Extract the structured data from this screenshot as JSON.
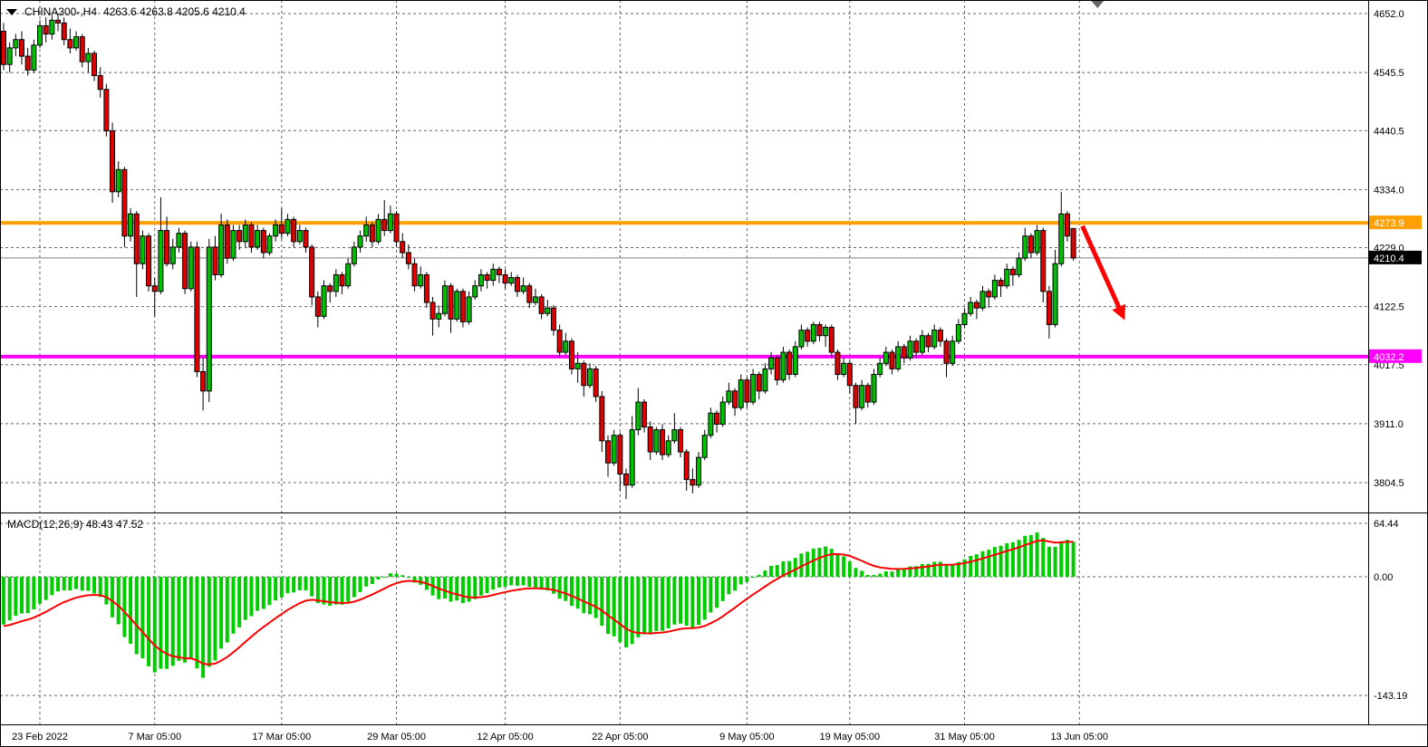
{
  "header": {
    "symbol_timeframe": "CHINA300-,H4",
    "ohlc": "4263.6 4263.8 4205.6 4210.4"
  },
  "macd_header": "MACD(12,26,9) 48.43 47.52",
  "chart_data": {
    "type": "candlestick",
    "title": "CHINA300- H4 candlestick chart with MACD(12,26,9) indicator",
    "price_pane": {
      "y_ticks": [
        4652.0,
        4545.5,
        4440.5,
        4334.0,
        4229.0,
        4122.5,
        4017.5,
        3911.0,
        3804.5
      ],
      "y_range_top": 4676.5,
      "y_range_bottom": 3750.5,
      "grid": true,
      "hlines": [
        {
          "name": "resistance-line",
          "value": 4273.9,
          "label": "4273.9",
          "color": "#FFA000",
          "width": 4
        },
        {
          "name": "support-line",
          "value": 4032.2,
          "label": "4032.2",
          "color": "#FF00FF",
          "width": 4
        }
      ],
      "current_price": {
        "value": 4210.4,
        "label": "4210.4",
        "line_color": "#808080",
        "label_bg": "#000000",
        "label_fg": "#FFFFFF"
      },
      "arrow": {
        "from_bar": 178.5,
        "from_price": 4268,
        "to_bar": 185.5,
        "to_price": 4098,
        "color": "#FF0000"
      },
      "candles": [
        [
          4620,
          4635,
          4550,
          4560
        ],
        [
          4560,
          4600,
          4545,
          4590
        ],
        [
          4590,
          4615,
          4575,
          4605
        ],
        [
          4605,
          4620,
          4560,
          4575
        ],
        [
          4575,
          4590,
          4540,
          4550
        ],
        [
          4550,
          4605,
          4545,
          4595
        ],
        [
          4595,
          4640,
          4590,
          4630
        ],
        [
          4630,
          4645,
          4600,
          4615
        ],
        [
          4615,
          4648,
          4605,
          4640
        ],
        [
          4640,
          4652,
          4620,
          4635
        ],
        [
          4635,
          4645,
          4595,
          4605
        ],
        [
          4605,
          4625,
          4580,
          4590
        ],
        [
          4590,
          4620,
          4585,
          4610
        ],
        [
          4610,
          4615,
          4555,
          4565
        ],
        [
          4565,
          4590,
          4545,
          4580
        ],
        [
          4580,
          4585,
          4530,
          4540
        ],
        [
          4540,
          4555,
          4500,
          4515
        ],
        [
          4515,
          4525,
          4430,
          4440
        ],
        [
          4440,
          4455,
          4310,
          4330
        ],
        [
          4330,
          4385,
          4320,
          4370
        ],
        [
          4370,
          4375,
          4230,
          4250
        ],
        [
          4250,
          4300,
          4240,
          4290
        ],
        [
          4290,
          4295,
          4140,
          4200
        ],
        [
          4200,
          4260,
          4190,
          4250
        ],
        [
          4250,
          4255,
          4150,
          4160
        ],
        [
          4160,
          4175,
          4105,
          4150
        ],
        [
          4150,
          4320,
          4145,
          4260
        ],
        [
          4260,
          4285,
          4195,
          4200
        ],
        [
          4200,
          4245,
          4190,
          4230
        ],
        [
          4230,
          4265,
          4220,
          4255
        ],
        [
          4255,
          4260,
          4145,
          4155
        ],
        [
          4155,
          4240,
          4150,
          4230
        ],
        [
          4230,
          4240,
          3995,
          4005
        ],
        [
          4005,
          4030,
          3935,
          3970
        ],
        [
          3970,
          4245,
          3950,
          4230
        ],
        [
          4230,
          4250,
          4170,
          4180
        ],
        [
          4180,
          4290,
          4175,
          4270
        ],
        [
          4270,
          4280,
          4200,
          4210
        ],
        [
          4210,
          4270,
          4205,
          4260
        ],
        [
          4260,
          4270,
          4225,
          4240
        ],
        [
          4240,
          4280,
          4230,
          4270
        ],
        [
          4270,
          4275,
          4220,
          4230
        ],
        [
          4230,
          4270,
          4225,
          4260
        ],
        [
          4260,
          4265,
          4210,
          4220
        ],
        [
          4220,
          4255,
          4215,
          4250
        ],
        [
          4250,
          4280,
          4240,
          4270
        ],
        [
          4270,
          4300,
          4245,
          4255
        ],
        [
          4255,
          4290,
          4250,
          4280
        ],
        [
          4280,
          4285,
          4230,
          4240
        ],
        [
          4240,
          4270,
          4235,
          4260
        ],
        [
          4260,
          4265,
          4220,
          4230
        ],
        [
          4230,
          4235,
          4125,
          4140
        ],
        [
          4140,
          4150,
          4085,
          4105
        ],
        [
          4105,
          4170,
          4100,
          4160
        ],
        [
          4160,
          4165,
          4130,
          4150
        ],
        [
          4150,
          4190,
          4140,
          4180
        ],
        [
          4180,
          4185,
          4145,
          4160
        ],
        [
          4160,
          4210,
          4155,
          4200
        ],
        [
          4200,
          4240,
          4195,
          4230
        ],
        [
          4230,
          4260,
          4220,
          4250
        ],
        [
          4250,
          4285,
          4240,
          4270
        ],
        [
          4270,
          4275,
          4230,
          4240
        ],
        [
          4240,
          4290,
          4235,
          4280
        ],
        [
          4280,
          4315,
          4250,
          4260
        ],
        [
          4260,
          4305,
          4255,
          4290
        ],
        [
          4290,
          4295,
          4230,
          4240
        ],
        [
          4240,
          4255,
          4210,
          4220
        ],
        [
          4220,
          4235,
          4190,
          4200
        ],
        [
          4200,
          4210,
          4150,
          4160
        ],
        [
          4160,
          4195,
          4155,
          4180
        ],
        [
          4180,
          4185,
          4120,
          4130
        ],
        [
          4130,
          4140,
          4070,
          4100
        ],
        [
          4100,
          4125,
          4085,
          4110
        ],
        [
          4110,
          4170,
          4105,
          4160
        ],
        [
          4160,
          4165,
          4075,
          4100
        ],
        [
          4100,
          4155,
          4095,
          4150
        ],
        [
          4150,
          4155,
          4085,
          4095
        ],
        [
          4095,
          4150,
          4090,
          4140
        ],
        [
          4140,
          4170,
          4135,
          4160
        ],
        [
          4160,
          4190,
          4150,
          4180
        ],
        [
          4180,
          4185,
          4155,
          4170
        ],
        [
          4170,
          4200,
          4160,
          4190
        ],
        [
          4190,
          4195,
          4165,
          4180
        ],
        [
          4180,
          4190,
          4155,
          4165
        ],
        [
          4165,
          4185,
          4160,
          4175
        ],
        [
          4175,
          4180,
          4140,
          4150
        ],
        [
          4150,
          4175,
          4145,
          4160
        ],
        [
          4160,
          4165,
          4120,
          4130
        ],
        [
          4130,
          4155,
          4125,
          4140
        ],
        [
          4140,
          4145,
          4100,
          4110
        ],
        [
          4110,
          4135,
          4105,
          4120
        ],
        [
          4120,
          4125,
          4070,
          4080
        ],
        [
          4080,
          4090,
          4030,
          4040
        ],
        [
          4040,
          4075,
          4035,
          4060
        ],
        [
          4060,
          4065,
          4000,
          4010
        ],
        [
          4010,
          4040,
          3985,
          4020
        ],
        [
          4020,
          4025,
          3960,
          3980
        ],
        [
          3980,
          4020,
          3975,
          4010
        ],
        [
          4010,
          4015,
          3950,
          3960
        ],
        [
          3960,
          3970,
          3860,
          3880
        ],
        [
          3880,
          3890,
          3815,
          3840
        ],
        [
          3840,
          3900,
          3835,
          3890
        ],
        [
          3890,
          3895,
          3790,
          3820
        ],
        [
          3820,
          3830,
          3775,
          3800
        ],
        [
          3800,
          3925,
          3795,
          3900
        ],
        [
          3900,
          3975,
          3890,
          3950
        ],
        [
          3950,
          3955,
          3895,
          3905
        ],
        [
          3905,
          3915,
          3845,
          3860
        ],
        [
          3860,
          3905,
          3855,
          3900
        ],
        [
          3900,
          3910,
          3845,
          3855
        ],
        [
          3855,
          3890,
          3850,
          3880
        ],
        [
          3880,
          3930,
          3875,
          3900
        ],
        [
          3900,
          3905,
          3850,
          3860
        ],
        [
          3860,
          3865,
          3790,
          3810
        ],
        [
          3810,
          3830,
          3785,
          3800
        ],
        [
          3800,
          3860,
          3795,
          3850
        ],
        [
          3850,
          3900,
          3845,
          3890
        ],
        [
          3890,
          3940,
          3885,
          3930
        ],
        [
          3930,
          3935,
          3895,
          3910
        ],
        [
          3910,
          3960,
          3905,
          3950
        ],
        [
          3950,
          3985,
          3945,
          3970
        ],
        [
          3970,
          3975,
          3925,
          3940
        ],
        [
          3940,
          4000,
          3935,
          3990
        ],
        [
          3990,
          3995,
          3940,
          3950
        ],
        [
          3950,
          4010,
          3945,
          4000
        ],
        [
          4000,
          4005,
          3955,
          3970
        ],
        [
          3970,
          4020,
          3965,
          4010
        ],
        [
          4010,
          4040,
          4000,
          4030
        ],
        [
          4030,
          4035,
          3980,
          3990
        ],
        [
          3990,
          4050,
          3985,
          4040
        ],
        [
          4040,
          4045,
          3990,
          4000
        ],
        [
          4000,
          4060,
          3995,
          4050
        ],
        [
          4050,
          4090,
          4045,
          4080
        ],
        [
          4080,
          4085,
          4050,
          4060
        ],
        [
          4060,
          4095,
          4055,
          4090
        ],
        [
          4090,
          4095,
          4060,
          4070
        ],
        [
          4070,
          4090,
          4050,
          4085
        ],
        [
          4085,
          4090,
          4030,
          4040
        ],
        [
          4040,
          4045,
          3990,
          4000
        ],
        [
          4000,
          4030,
          3995,
          4020
        ],
        [
          4020,
          4025,
          3965,
          3980
        ],
        [
          3980,
          3985,
          3910,
          3940
        ],
        [
          3940,
          3990,
          3935,
          3980
        ],
        [
          3980,
          3985,
          3940,
          3950
        ],
        [
          3950,
          4010,
          3945,
          4000
        ],
        [
          4000,
          4030,
          3995,
          4020
        ],
        [
          4020,
          4050,
          4015,
          4040
        ],
        [
          4040,
          4045,
          4000,
          4010
        ],
        [
          4010,
          4060,
          4005,
          4050
        ],
        [
          4050,
          4055,
          4020,
          4030
        ],
        [
          4030,
          4070,
          4025,
          4060
        ],
        [
          4060,
          4065,
          4030,
          4040
        ],
        [
          4040,
          4080,
          4035,
          4070
        ],
        [
          4070,
          4075,
          4040,
          4050
        ],
        [
          4050,
          4090,
          4045,
          4080
        ],
        [
          4080,
          4085,
          4050,
          4060
        ],
        [
          4060,
          4065,
          3995,
          4020
        ],
        [
          4020,
          4070,
          4015,
          4060
        ],
        [
          4060,
          4100,
          4055,
          4090
        ],
        [
          4090,
          4120,
          4085,
          4110
        ],
        [
          4110,
          4140,
          4105,
          4130
        ],
        [
          4130,
          4135,
          4100,
          4120
        ],
        [
          4120,
          4160,
          4115,
          4150
        ],
        [
          4150,
          4155,
          4120,
          4140
        ],
        [
          4140,
          4180,
          4135,
          4170
        ],
        [
          4170,
          4175,
          4140,
          4160
        ],
        [
          4160,
          4200,
          4155,
          4190
        ],
        [
          4190,
          4195,
          4160,
          4180
        ],
        [
          4180,
          4220,
          4175,
          4210
        ],
        [
          4210,
          4265,
          4205,
          4250
        ],
        [
          4250,
          4255,
          4210,
          4220
        ],
        [
          4220,
          4270,
          4215,
          4260
        ],
        [
          4260,
          4265,
          4130,
          4150
        ],
        [
          4150,
          4160,
          4065,
          4090
        ],
        [
          4090,
          4225,
          4085,
          4200
        ],
        [
          4200,
          4330,
          4195,
          4290
        ],
        [
          4290,
          4295,
          4240,
          4250
        ],
        [
          4263.6,
          4263.8,
          4205.6,
          4210.4
        ]
      ]
    },
    "macd_pane": {
      "current_values": [
        48.43,
        47.52
      ],
      "y_ticks": [
        64.44,
        0,
        -143.19
      ],
      "y_range_top": 76.5,
      "y_range_bottom": -178.0,
      "fast_period": 12,
      "slow_period": 26,
      "signal_period": 9,
      "seed_fast_offset": 25,
      "seed_slow_offset": 85,
      "histogram_color": "#00CC00",
      "signal_color": "#FF0000"
    },
    "x_axis": {
      "labels": [
        {
          "text": "23 Feb 2022",
          "bar": 6
        },
        {
          "text": "7 Mar 05:00",
          "bar": 25
        },
        {
          "text": "17 Mar 05:00",
          "bar": 46
        },
        {
          "text": "29 Mar 05:00",
          "bar": 65
        },
        {
          "text": "12 Apr 05:00",
          "bar": 83
        },
        {
          "text": "22 Apr 05:00",
          "bar": 102
        },
        {
          "text": "9 May 05:00",
          "bar": 123
        },
        {
          "text": "19 May 05:00",
          "bar": 140
        },
        {
          "text": "31 May 05:00",
          "bar": 159
        },
        {
          "text": "13 Jun 05:00",
          "bar": 178
        }
      ]
    },
    "colors": {
      "up": "#00BE00",
      "down": "#E00000",
      "wick": "#000000",
      "grid": "#666666",
      "background": "#FFFFFF",
      "axis_text": "#000000",
      "border": "#000000",
      "shift_marker": "#666666"
    }
  }
}
